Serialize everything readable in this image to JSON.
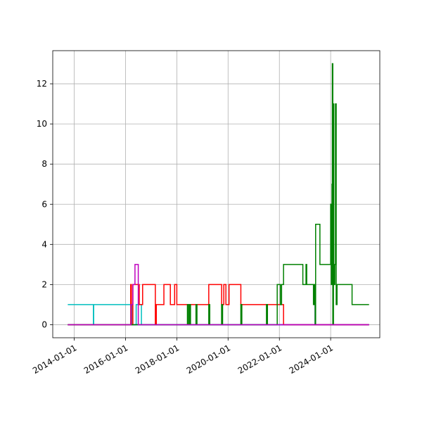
{
  "chart_data": {
    "type": "line",
    "title": "",
    "xlabel": "",
    "ylabel": "",
    "x_scale": "date",
    "xlim": [
      "2013-03-01",
      "2025-12-01"
    ],
    "ylim": [
      -0.65,
      13.65
    ],
    "x_ticks": [
      "2014-01-01",
      "2016-01-01",
      "2018-01-01",
      "2020-01-01",
      "2022-01-01",
      "2024-01-01"
    ],
    "y_ticks": [
      0,
      2,
      4,
      6,
      8,
      10,
      12
    ],
    "y_tick_labels": [
      "0",
      "2",
      "4",
      "6",
      "8",
      "10",
      "12"
    ],
    "grid": true,
    "legend": "none",
    "series": [
      {
        "color": "#00bfbf",
        "step": true,
        "points": [
          [
            "2013-10-01",
            1
          ],
          [
            "2014-10-01",
            1
          ],
          [
            "2014-10-01",
            0
          ],
          [
            "2014-10-05",
            0
          ],
          [
            "2014-10-05",
            1
          ],
          [
            "2016-04-01",
            1
          ],
          [
            "2016-04-01",
            0
          ],
          [
            "2016-06-01",
            0
          ],
          [
            "2016-06-01",
            1
          ],
          [
            "2016-08-15",
            1
          ],
          [
            "2016-08-15",
            0
          ],
          [
            "2025-07-01",
            0
          ]
        ]
      },
      {
        "color": "#0000ff",
        "step": true,
        "points": [
          [
            "2013-10-01",
            0
          ],
          [
            "2023-05-25",
            0
          ],
          [
            "2023-05-25",
            1
          ],
          [
            "2023-05-30",
            1
          ],
          [
            "2023-05-30",
            0
          ],
          [
            "2025-07-01",
            0
          ]
        ]
      },
      {
        "color": "#ff0000",
        "step": true,
        "points": [
          [
            "2013-10-01",
            0
          ],
          [
            "2016-03-15",
            0
          ],
          [
            "2016-03-15",
            2
          ],
          [
            "2016-03-25",
            2
          ],
          [
            "2016-03-25",
            0
          ],
          [
            "2016-04-15",
            0
          ],
          [
            "2016-04-15",
            2
          ],
          [
            "2016-07-15",
            2
          ],
          [
            "2016-07-15",
            1
          ],
          [
            "2016-09-01",
            1
          ],
          [
            "2016-09-01",
            2
          ],
          [
            "2017-03-01",
            2
          ],
          [
            "2017-03-01",
            0
          ],
          [
            "2017-03-15",
            0
          ],
          [
            "2017-03-15",
            1
          ],
          [
            "2017-07-01",
            1
          ],
          [
            "2017-07-01",
            2
          ],
          [
            "2017-10-01",
            2
          ],
          [
            "2017-10-01",
            1
          ],
          [
            "2017-12-01",
            1
          ],
          [
            "2017-12-01",
            2
          ],
          [
            "2018-01-01",
            2
          ],
          [
            "2018-01-01",
            1
          ],
          [
            "2019-04-01",
            1
          ],
          [
            "2019-04-01",
            2
          ],
          [
            "2019-10-01",
            2
          ],
          [
            "2019-10-01",
            1
          ],
          [
            "2019-11-01",
            1
          ],
          [
            "2019-11-01",
            2
          ],
          [
            "2019-12-01",
            2
          ],
          [
            "2019-12-01",
            1
          ],
          [
            "2020-01-15",
            1
          ],
          [
            "2020-01-15",
            2
          ],
          [
            "2020-07-01",
            2
          ],
          [
            "2020-07-01",
            1
          ],
          [
            "2022-03-01",
            1
          ],
          [
            "2022-03-01",
            0
          ],
          [
            "2025-07-01",
            0
          ]
        ]
      },
      {
        "color": "#008000",
        "step": true,
        "points": [
          [
            "2013-10-01",
            0
          ],
          [
            "2018-06-01",
            0
          ],
          [
            "2018-06-01",
            1
          ],
          [
            "2018-06-15",
            1
          ],
          [
            "2018-06-15",
            0
          ],
          [
            "2018-07-01",
            0
          ],
          [
            "2018-07-01",
            1
          ],
          [
            "2018-07-15",
            1
          ],
          [
            "2018-07-15",
            0
          ],
          [
            "2018-10-01",
            0
          ],
          [
            "2018-10-01",
            1
          ],
          [
            "2018-10-15",
            1
          ],
          [
            "2018-10-15",
            0
          ],
          [
            "2019-04-01",
            0
          ],
          [
            "2019-04-01",
            1
          ],
          [
            "2019-04-15",
            1
          ],
          [
            "2019-04-15",
            0
          ],
          [
            "2019-10-01",
            0
          ],
          [
            "2019-10-01",
            1
          ],
          [
            "2019-10-15",
            1
          ],
          [
            "2019-10-15",
            0
          ],
          [
            "2020-07-01",
            0
          ],
          [
            "2020-07-01",
            1
          ],
          [
            "2020-07-15",
            1
          ],
          [
            "2020-07-15",
            0
          ],
          [
            "2021-07-01",
            0
          ],
          [
            "2021-07-01",
            1
          ],
          [
            "2021-07-15",
            1
          ],
          [
            "2021-07-15",
            0
          ],
          [
            "2021-12-01",
            0
          ],
          [
            "2021-12-01",
            2
          ],
          [
            "2022-01-15",
            2
          ],
          [
            "2022-01-15",
            1
          ],
          [
            "2022-02-01",
            1
          ],
          [
            "2022-02-01",
            2
          ],
          [
            "2022-03-01",
            2
          ],
          [
            "2022-03-01",
            3
          ],
          [
            "2022-12-01",
            3
          ],
          [
            "2022-12-01",
            2
          ],
          [
            "2023-01-15",
            2
          ],
          [
            "2023-01-15",
            3
          ],
          [
            "2023-01-25",
            3
          ],
          [
            "2023-01-25",
            2
          ],
          [
            "2023-05-01",
            2
          ],
          [
            "2023-05-01",
            1
          ],
          [
            "2023-05-15",
            1
          ],
          [
            "2023-05-15",
            2
          ],
          [
            "2023-05-25",
            2
          ],
          [
            "2023-05-25",
            0
          ],
          [
            "2023-06-01",
            0
          ],
          [
            "2023-06-01",
            5
          ],
          [
            "2023-08-01",
            5
          ],
          [
            "2023-08-01",
            3
          ],
          [
            "2024-01-01",
            3
          ],
          [
            "2024-01-01",
            6
          ],
          [
            "2024-01-10",
            6
          ],
          [
            "2024-01-10",
            2
          ],
          [
            "2024-01-20",
            2
          ],
          [
            "2024-01-20",
            7
          ],
          [
            "2024-01-25",
            7
          ],
          [
            "2024-01-25",
            13
          ],
          [
            "2024-02-01",
            13
          ],
          [
            "2024-02-01",
            0
          ],
          [
            "2024-02-10",
            0
          ],
          [
            "2024-02-10",
            11
          ],
          [
            "2024-02-15",
            11
          ],
          [
            "2024-02-15",
            2
          ],
          [
            "2024-03-01",
            2
          ],
          [
            "2024-03-01",
            3
          ],
          [
            "2024-03-10",
            3
          ],
          [
            "2024-03-10",
            11
          ],
          [
            "2024-03-20",
            11
          ],
          [
            "2024-03-20",
            1
          ],
          [
            "2024-04-01",
            1
          ],
          [
            "2024-04-01",
            2
          ],
          [
            "2024-11-01",
            2
          ],
          [
            "2024-11-01",
            1
          ],
          [
            "2025-07-01",
            1
          ]
        ]
      },
      {
        "color": "#bf00bf",
        "step": true,
        "points": [
          [
            "2013-10-01",
            0
          ],
          [
            "2016-03-20",
            0
          ],
          [
            "2016-03-20",
            1
          ],
          [
            "2016-04-15",
            1
          ],
          [
            "2016-04-15",
            2
          ],
          [
            "2016-05-15",
            2
          ],
          [
            "2016-05-15",
            3
          ],
          [
            "2016-07-01",
            3
          ],
          [
            "2016-07-01",
            0
          ],
          [
            "2025-07-01",
            0
          ]
        ]
      }
    ]
  }
}
